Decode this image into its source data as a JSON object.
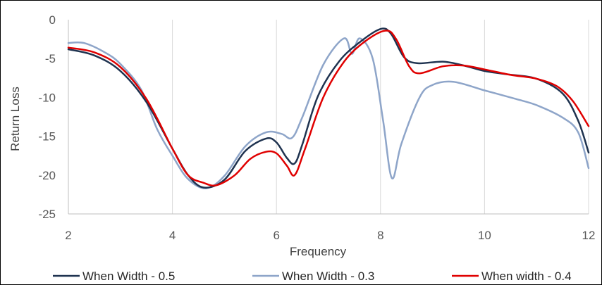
{
  "chart_data": {
    "type": "line",
    "title": "",
    "xlabel": "Frequency",
    "ylabel": "Return Loss",
    "xlim": [
      2,
      12
    ],
    "ylim": [
      -25,
      0
    ],
    "xticks": [
      2,
      4,
      6,
      8,
      10,
      12
    ],
    "yticks": [
      0,
      -5,
      -10,
      -15,
      -20,
      -25
    ],
    "grid": {
      "vertical": true,
      "horizontal": false
    },
    "legend_position": "bottom",
    "series": [
      {
        "name": "When Width - 0.5",
        "color": "#1f3350",
        "points": [
          [
            2.0,
            -3.8
          ],
          [
            2.5,
            -4.6
          ],
          [
            3.0,
            -6.6
          ],
          [
            3.5,
            -10.6
          ],
          [
            4.0,
            -16.6
          ],
          [
            4.3,
            -20.0
          ],
          [
            4.6,
            -21.6
          ],
          [
            5.0,
            -20.6
          ],
          [
            5.4,
            -16.9
          ],
          [
            5.8,
            -15.3
          ],
          [
            6.0,
            -15.8
          ],
          [
            6.2,
            -17.8
          ],
          [
            6.35,
            -18.5
          ],
          [
            6.5,
            -16.0
          ],
          [
            6.8,
            -9.8
          ],
          [
            7.2,
            -5.4
          ],
          [
            7.6,
            -2.9
          ],
          [
            8.0,
            -1.2
          ],
          [
            8.2,
            -1.8
          ],
          [
            8.45,
            -4.8
          ],
          [
            8.7,
            -5.6
          ],
          [
            9.2,
            -5.4
          ],
          [
            9.6,
            -5.9
          ],
          [
            10.0,
            -6.6
          ],
          [
            10.4,
            -7.0
          ],
          [
            11.0,
            -7.6
          ],
          [
            11.5,
            -9.5
          ],
          [
            11.8,
            -13.0
          ],
          [
            12.0,
            -17.1
          ]
        ]
      },
      {
        "name": "When Width - 0.3",
        "color": "#8ea5c9",
        "points": [
          [
            2.0,
            -3.0
          ],
          [
            2.3,
            -3.0
          ],
          [
            2.7,
            -4.2
          ],
          [
            3.0,
            -5.7
          ],
          [
            3.4,
            -9.0
          ],
          [
            3.7,
            -14.0
          ],
          [
            4.0,
            -17.5
          ],
          [
            4.3,
            -20.5
          ],
          [
            4.65,
            -21.7
          ],
          [
            5.0,
            -20.1
          ],
          [
            5.4,
            -16.3
          ],
          [
            5.8,
            -14.5
          ],
          [
            6.1,
            -14.7
          ],
          [
            6.3,
            -15.2
          ],
          [
            6.5,
            -12.5
          ],
          [
            6.9,
            -5.8
          ],
          [
            7.3,
            -2.4
          ],
          [
            7.45,
            -4.4
          ],
          [
            7.6,
            -2.4
          ],
          [
            7.85,
            -5.0
          ],
          [
            8.05,
            -13.0
          ],
          [
            8.22,
            -20.4
          ],
          [
            8.4,
            -16.0
          ],
          [
            8.75,
            -10.0
          ],
          [
            9.0,
            -8.4
          ],
          [
            9.4,
            -8.0
          ],
          [
            10.0,
            -9.1
          ],
          [
            10.6,
            -10.2
          ],
          [
            11.0,
            -11.0
          ],
          [
            11.5,
            -12.6
          ],
          [
            11.8,
            -14.5
          ],
          [
            12.0,
            -19.1
          ]
        ]
      },
      {
        "name": "When width - 0.4",
        "color": "#e00000",
        "points": [
          [
            2.0,
            -3.6
          ],
          [
            2.5,
            -4.2
          ],
          [
            3.0,
            -6.1
          ],
          [
            3.5,
            -10.2
          ],
          [
            4.0,
            -16.6
          ],
          [
            4.3,
            -20.0
          ],
          [
            4.6,
            -21.0
          ],
          [
            4.85,
            -21.3
          ],
          [
            5.2,
            -20.0
          ],
          [
            5.5,
            -17.9
          ],
          [
            5.8,
            -17.0
          ],
          [
            6.0,
            -17.2
          ],
          [
            6.2,
            -18.8
          ],
          [
            6.35,
            -20.0
          ],
          [
            6.55,
            -16.6
          ],
          [
            6.9,
            -10.0
          ],
          [
            7.3,
            -5.4
          ],
          [
            7.7,
            -2.8
          ],
          [
            8.1,
            -1.4
          ],
          [
            8.3,
            -2.5
          ],
          [
            8.55,
            -6.0
          ],
          [
            8.75,
            -6.9
          ],
          [
            9.2,
            -6.0
          ],
          [
            9.6,
            -5.9
          ],
          [
            10.0,
            -6.4
          ],
          [
            10.5,
            -7.1
          ],
          [
            11.0,
            -7.6
          ],
          [
            11.4,
            -8.6
          ],
          [
            11.7,
            -10.5
          ],
          [
            12.0,
            -13.7
          ]
        ]
      }
    ]
  }
}
